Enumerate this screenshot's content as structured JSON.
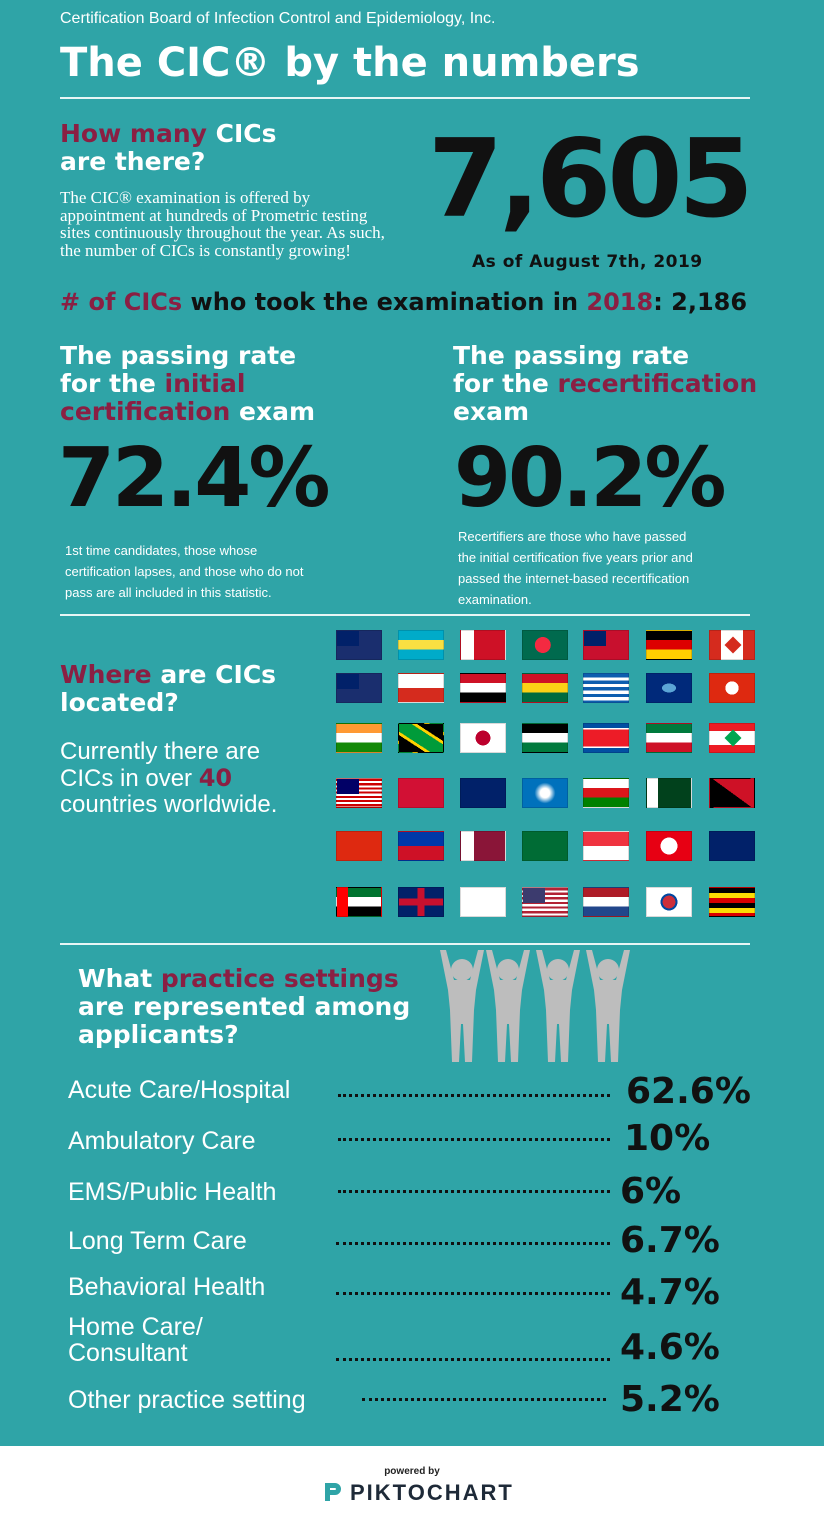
{
  "header": {
    "org": "Certification Board of Infection Control and Epidemiology, Inc.",
    "title": "The CIC® by the numbers"
  },
  "count": {
    "q_highlight": "How many",
    "q_rest_1": " CICs",
    "q_rest_2": "are there?",
    "body": "The CIC® examination is offered by appointment at hundreds of Prometric testing sites continuously throughout the year. As such, the number of CICs is constantly growing!",
    "number": "7,605",
    "as_of": "As of August 7th, 2019"
  },
  "took": {
    "hl1": "# of CICs",
    "mid": " who took the examination in ",
    "hl2": "2018",
    "end": ": 2,186"
  },
  "initial": {
    "l1": "The passing rate",
    "l2_pre": "for the ",
    "l2_hl": "initial",
    "l3_hl": "certification",
    "l3_rest": " exam",
    "value": "72.4%",
    "note": "1st time candidates, those whose certification lapses, and those who do not pass are all included in this statistic."
  },
  "recert": {
    "l1": "The passing rate",
    "l2_pre": "for the ",
    "l2_hl": "recertification",
    "l3": "exam",
    "value": "90.2%",
    "note": "Recertifiers are those who have passed the initial certification five years prior and passed the  internet-based recertification examination."
  },
  "where": {
    "hl": "Where",
    "rest1": " are CICs",
    "rest2": "located?",
    "b1": "Currently there are CICs in over ",
    "b_hl": "40",
    "b2": " countries worldwide."
  },
  "flags": [
    "australia",
    "bahamas",
    "bahrain",
    "bangladesh",
    "bermuda",
    "germany",
    "canada",
    "cayman-islands",
    "chile",
    "egypt",
    "ghana",
    "greece",
    "guam",
    "hong-kong",
    "india",
    "jamaica",
    "japan",
    "jordan",
    "north-korea",
    "kuwait",
    "lebanon",
    "malaysia",
    "maldives",
    "new-zealand",
    "northern-mariana-islands",
    "oman",
    "pakistan",
    "papua-new-guinea",
    "china",
    "philippines",
    "qatar",
    "saudi-arabia",
    "singapore",
    "tunisia",
    "turks-and-caicos",
    "uae",
    "united-kingdom",
    "us-virgin-islands",
    "united-states",
    "netherlands",
    "south-korea",
    "uganda"
  ],
  "settings": {
    "q_pre": "What ",
    "q_hl": "practice settings",
    "q_l2": "are represented among",
    "q_l3": "applicants?",
    "icon": "people-cheering-icon",
    "rows": [
      {
        "label": "Acute Care/Hospital",
        "value": "62.6%"
      },
      {
        "label": "Ambulatory Care",
        "value": "10%"
      },
      {
        "label": "EMS/Public Health",
        "value": "6%"
      },
      {
        "label": "Long Term Care",
        "value": "6.7%"
      },
      {
        "label": "Behavioral Health",
        "value": "4.7%"
      },
      {
        "label": "Home Care/ Consultant",
        "value": "4.6%"
      },
      {
        "label": "Other practice setting",
        "value": "5.2%"
      }
    ]
  },
  "footer": {
    "powered": "powered by",
    "brand": "PIKTOCHART"
  }
}
